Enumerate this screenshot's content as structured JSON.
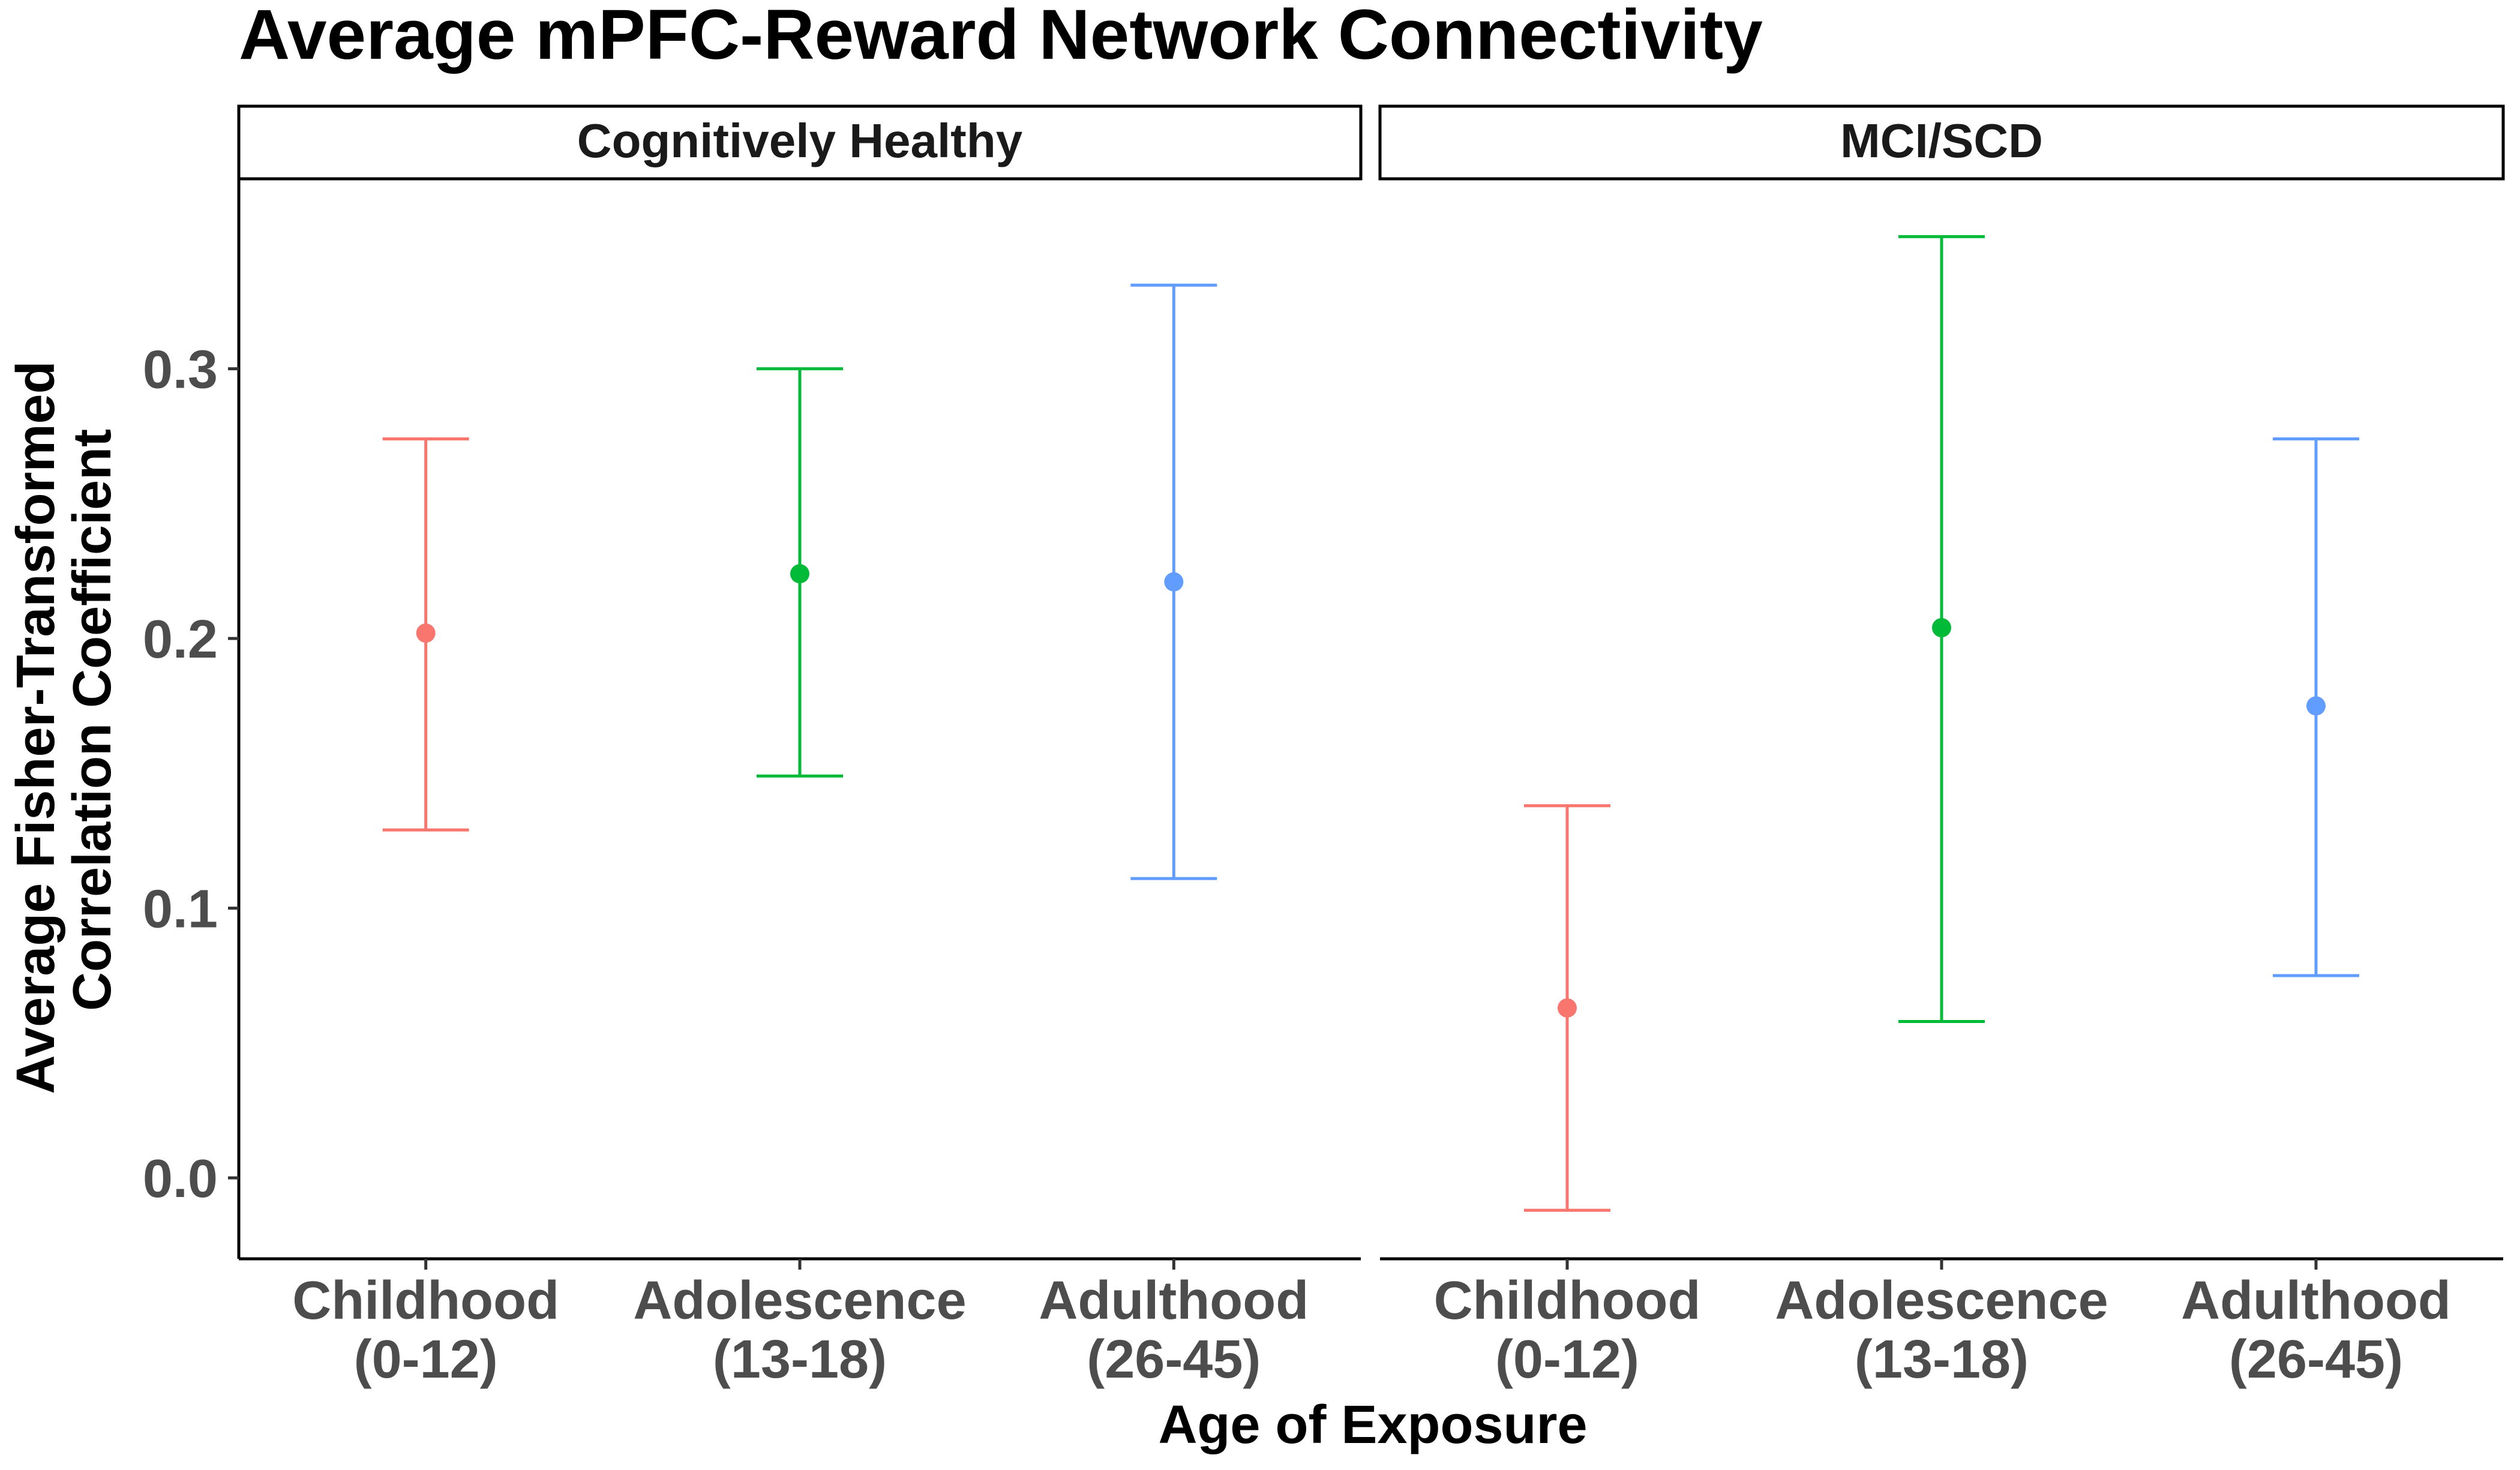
{
  "chart_data": {
    "type": "errorbar",
    "title": "Average mPFC-Reward Network Connectivity",
    "xlabel": "Age of Exposure",
    "ylabel_line1": "Average Fisher-Transformed",
    "ylabel_line2": "Correlation Coefficient",
    "ylim": [
      -0.03,
      0.37
    ],
    "y_ticks": [
      "0.0",
      "0.1",
      "0.2",
      "0.3"
    ],
    "y_tick_values": [
      0.0,
      0.1,
      0.2,
      0.3
    ],
    "categories": [
      {
        "line1": "Childhood",
        "line2": "(0-12)",
        "color": "#F8766D"
      },
      {
        "line1": "Adolescence",
        "line2": "(13-18)",
        "color": "#00BA38"
      },
      {
        "line1": "Adulthood",
        "line2": "(26-45)",
        "color": "#619CFF"
      }
    ],
    "panels": [
      {
        "label": "Cognitively Healthy",
        "points": [
          {
            "mean": 0.202,
            "lower": 0.129,
            "upper": 0.274
          },
          {
            "mean": 0.224,
            "lower": 0.149,
            "upper": 0.3
          },
          {
            "mean": 0.221,
            "lower": 0.111,
            "upper": 0.331
          }
        ]
      },
      {
        "label": "MCI/SCD",
        "points": [
          {
            "mean": 0.063,
            "lower": -0.012,
            "upper": 0.138
          },
          {
            "mean": 0.204,
            "lower": 0.058,
            "upper": 0.349
          },
          {
            "mean": 0.175,
            "lower": 0.075,
            "upper": 0.274
          }
        ]
      }
    ],
    "grid": false,
    "legend": "none"
  }
}
